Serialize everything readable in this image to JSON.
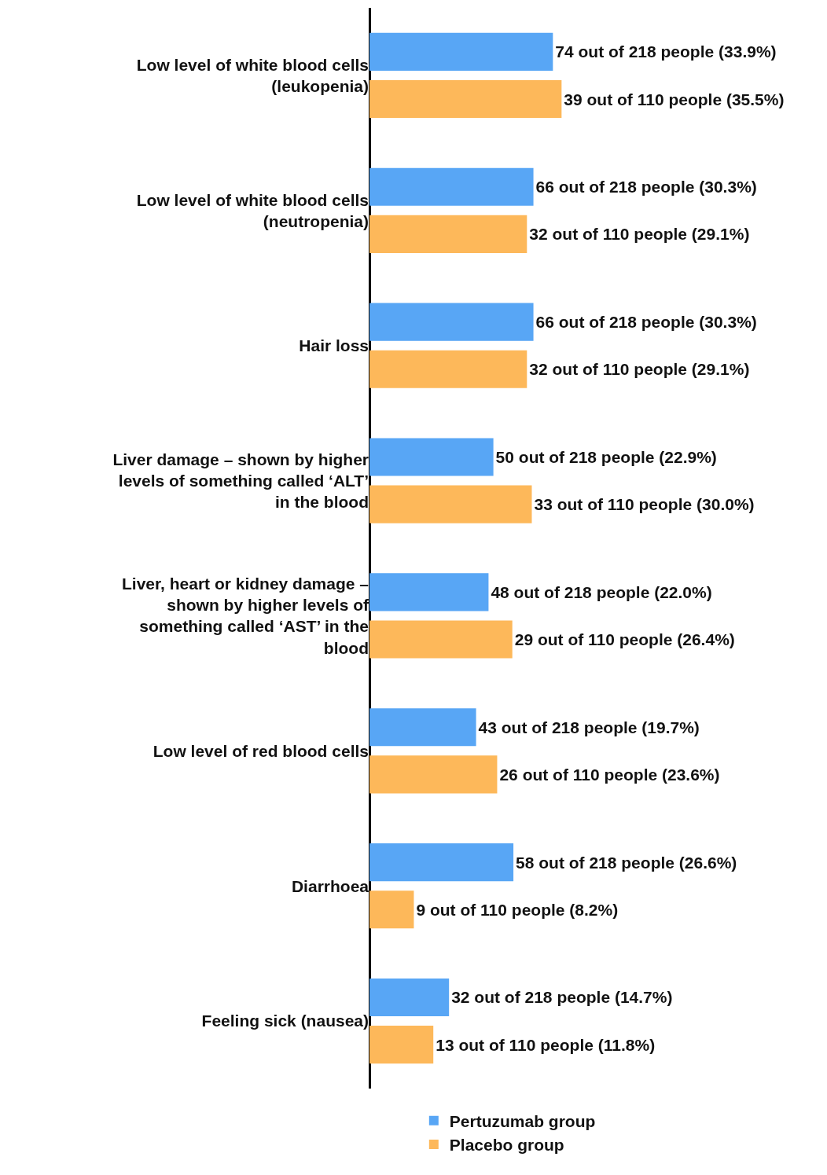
{
  "chart_data": {
    "type": "bar",
    "orientation": "horizontal",
    "tick_labels": "y",
    "grid": false,
    "legend": "bottom",
    "categories": [
      "Low level of white blood cells (leukopenia)",
      "Low level of white blood cells (neutropenia)",
      "Hair loss",
      "Liver damage – shown by higher levels of something called ‘ALT’ in the blood",
      "Liver, heart or kidney damage – shown by higher levels of something called ‘AST’ in the blood",
      "Low level of red blood cells",
      "Diarrhoea",
      "Feeling sick (nausea)"
    ],
    "series": [
      {
        "name": "Pertuzumab group",
        "color": "#58a6f5",
        "values": [
          33.9,
          30.3,
          30.3,
          22.9,
          22.0,
          19.7,
          26.6,
          14.7
        ],
        "value_labels": [
          "74 out of 218 people (33.9%)",
          "66 out of 218 people (30.3%)",
          "66 out of 218 people (30.3%)",
          "50 out of 218 people (22.9%)",
          "48 out of 218 people (22.0%)",
          "43 out of 218 people (19.7%)",
          "58 out of 218 people (26.6%)",
          "32 out of 218 people (14.7%)"
        ]
      },
      {
        "name": "Placebo group",
        "color": "#fdb85a",
        "values": [
          35.5,
          29.1,
          29.1,
          30.0,
          26.4,
          23.6,
          8.2,
          11.8
        ],
        "value_labels": [
          "39 out of 110 people (35.5%)",
          "32 out of 110 people (29.1%)",
          "32 out of 110 people (29.1%)",
          "33 out of 110 people (30.0%)",
          "29 out of 110 people (26.4%)",
          "26 out of 110 people (23.6%)",
          "9 out of 110 people (8.2%)",
          "13 out of 110 people (11.8%)"
        ]
      }
    ]
  }
}
